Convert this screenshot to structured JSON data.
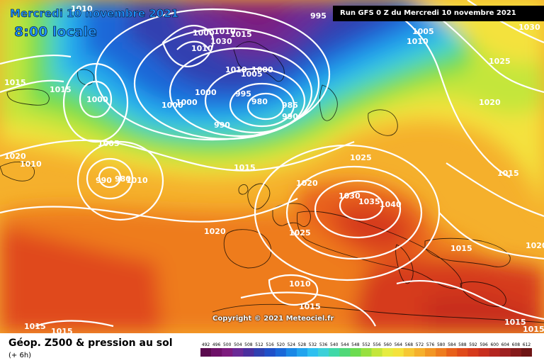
{
  "header": {
    "date": "Mercredi 10 novembre 2021",
    "time": "8:00 locale",
    "run": "Run GFS 0 Z du Mercredi 10 novembre 2021"
  },
  "copyright": "Copyright © 2021 Meteociel.fr",
  "legend": {
    "title": "Géop. Z500 & pression au sol",
    "subtitle": "(+ 6h)",
    "scale": [
      "492",
      "496",
      "500",
      "504",
      "508",
      "512",
      "516",
      "520",
      "524",
      "528",
      "532",
      "536",
      "540",
      "544",
      "548",
      "552",
      "556",
      "560",
      "564",
      "568",
      "572",
      "576",
      "580",
      "584",
      "588",
      "592",
      "596",
      "600",
      "604",
      "608",
      "612"
    ],
    "colors": [
      "#5a0a4e",
      "#6e1068",
      "#7d1b7e",
      "#6a2a96",
      "#4b2f9e",
      "#3040b0",
      "#2050c8",
      "#1a68d8",
      "#1a88e6",
      "#22a4ee",
      "#2ec0f0",
      "#3cd0d8",
      "#40d8a8",
      "#50d878",
      "#6cdc50",
      "#98e040",
      "#c4e63a",
      "#e6ec40",
      "#f4e23c",
      "#f6c834",
      "#f5b02c",
      "#f29624",
      "#ee7c1e",
      "#e8601a",
      "#e04a1a",
      "#d63a1c",
      "#c82e1e",
      "#b42620",
      "#9e2020",
      "#861a1a",
      "#6e1414"
    ]
  },
  "map": {
    "pressure_labels": [
      {
        "text": "1010"
      },
      {
        "text": "1015"
      },
      {
        "text": "1015"
      },
      {
        "text": "1000"
      },
      {
        "text": "1010"
      },
      {
        "text": "1005"
      },
      {
        "text": "990"
      },
      {
        "text": "980"
      },
      {
        "text": "1010"
      },
      {
        "text": "1000"
      },
      {
        "text": "1000"
      },
      {
        "text": "1000"
      },
      {
        "text": "1010"
      },
      {
        "text": "1005"
      },
      {
        "text": "1000"
      },
      {
        "text": "1010"
      },
      {
        "text": "1030"
      },
      {
        "text": "1000"
      },
      {
        "text": "1010"
      },
      {
        "text": "1015"
      },
      {
        "text": "995"
      },
      {
        "text": "990"
      },
      {
        "text": "980"
      },
      {
        "text": "985"
      },
      {
        "text": "990"
      },
      {
        "text": "995"
      },
      {
        "text": "1005"
      },
      {
        "text": "1010"
      },
      {
        "text": "1030"
      },
      {
        "text": "1025"
      },
      {
        "text": "1020"
      },
      {
        "text": "1015"
      },
      {
        "text": "1020"
      },
      {
        "text": "1015"
      },
      {
        "text": "1020"
      },
      {
        "text": "1025"
      },
      {
        "text": "1030"
      },
      {
        "text": "1035"
      },
      {
        "text": "1040"
      },
      {
        "text": "1025"
      },
      {
        "text": "1020"
      },
      {
        "text": "1015"
      },
      {
        "text": "1010"
      },
      {
        "text": "1015"
      },
      {
        "text": "1015"
      },
      {
        "text": "1015"
      },
      {
        "text": "1015"
      },
      {
        "text": "1020"
      },
      {
        "text": "1015"
      }
    ]
  }
}
